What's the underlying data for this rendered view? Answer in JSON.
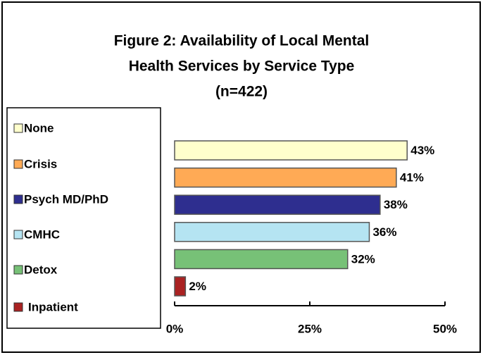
{
  "chart_data": {
    "type": "hbar",
    "title": [
      "Figure 2:  Availability of Local Mental",
      "Health Services by Service Type"
    ],
    "subtitle": "(n=422)",
    "categories": [
      "None",
      "Crisis",
      "Psych MD/PhD",
      "CMHC",
      "Detox",
      "Inpatient"
    ],
    "values": [
      43,
      41,
      38,
      36,
      32,
      2
    ],
    "value_labels": [
      "43%",
      "41%",
      "38%",
      "36%",
      "32%",
      "2%"
    ],
    "colors": [
      "#ffffcc",
      "#ffaa55",
      "#2e2e8f",
      "#b5e4f2",
      "#77c177",
      "#aa2222"
    ],
    "xlim": [
      0,
      50
    ],
    "xticks": [
      {
        "value": 0,
        "label": "0%"
      },
      {
        "value": 25,
        "label": "25%"
      },
      {
        "value": 50,
        "label": "50%"
      }
    ],
    "legend": "left"
  }
}
